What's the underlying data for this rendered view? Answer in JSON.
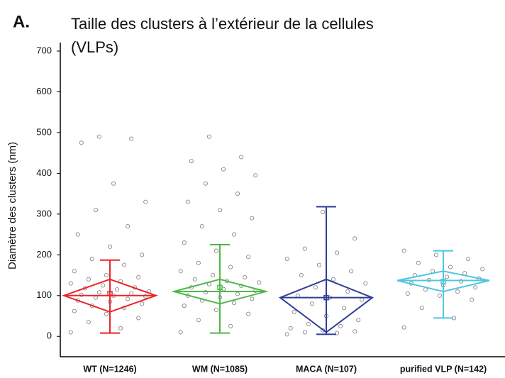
{
  "chart_data": {
    "type": "box",
    "panel_label": "A.",
    "title": [
      "Taille des clusters à l’extérieur de la cellules",
      "(VLPs)"
    ],
    "ylabel": "Diamètre des clusters (nm)",
    "ylim": [
      -50,
      700
    ],
    "yticks": [
      0,
      100,
      200,
      300,
      400,
      500,
      600,
      700
    ],
    "categories": [
      "WT (N=1246)",
      "WM (N=1085)",
      "MACA (N=107)",
      "purified VLP (N=142)"
    ],
    "series": [
      {
        "color": "#e8262a",
        "whisker_low": 8,
        "q1": 60,
        "median": 100,
        "q3": 140,
        "whisker_high": 187,
        "mean": 105,
        "points": [
          10,
          20,
          35,
          45,
          55,
          62,
          70,
          75,
          80,
          85,
          88,
          92,
          95,
          98,
          100,
          102,
          105,
          108,
          110,
          115,
          118,
          120,
          125,
          130,
          135,
          140,
          145,
          150,
          160,
          175,
          190,
          200,
          220,
          250,
          270,
          310,
          330,
          375,
          475,
          485,
          490
        ]
      },
      {
        "color": "#4fb848",
        "whisker_low": 8,
        "q1": 80,
        "median": 110,
        "q3": 140,
        "whisker_high": 225,
        "mean": 120,
        "points": [
          10,
          25,
          40,
          55,
          65,
          75,
          82,
          88,
          92,
          96,
          100,
          104,
          108,
          112,
          116,
          120,
          124,
          128,
          132,
          136,
          140,
          145,
          150,
          160,
          170,
          180,
          195,
          210,
          230,
          250,
          270,
          290,
          310,
          330,
          350,
          375,
          395,
          410,
          430,
          440,
          490
        ]
      },
      {
        "color": "#2e3d9a",
        "whisker_low": 5,
        "q1": 10,
        "median": 95,
        "q3": 140,
        "whisker_high": 318,
        "mean": 95,
        "points": [
          5,
          8,
          10,
          12,
          15,
          20,
          25,
          30,
          40,
          50,
          60,
          70,
          80,
          90,
          95,
          100,
          110,
          120,
          130,
          140,
          150,
          160,
          175,
          190,
          205,
          215,
          240,
          305
        ]
      },
      {
        "color": "#4fc6e0",
        "whisker_low": 45,
        "q1": 110,
        "median": 137,
        "q3": 160,
        "whisker_high": 210,
        "mean": 135,
        "points": [
          22,
          45,
          70,
          90,
          100,
          105,
          110,
          115,
          120,
          125,
          130,
          135,
          138,
          142,
          146,
          150,
          155,
          160,
          165,
          170,
          180,
          190,
          200,
          210
        ]
      }
    ]
  }
}
